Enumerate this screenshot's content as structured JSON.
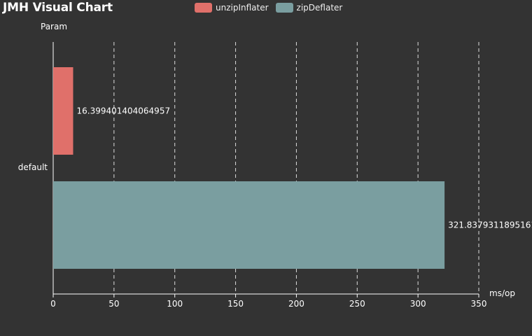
{
  "title": "JMH Visual Chart",
  "chart_data": {
    "type": "bar",
    "orientation": "horizontal",
    "categories": [
      "default"
    ],
    "category_axis_label": "Param",
    "value_axis_label": "ms/op",
    "series": [
      {
        "name": "unzipInflater",
        "values": [
          16.399401404064957
        ],
        "label": "16.399401404064957",
        "color": "#e0706a"
      },
      {
        "name": "zipDeflater",
        "values": [
          321.83793118951615
        ],
        "label": "321.83793118951615",
        "color": "#7a9ea0"
      }
    ],
    "xlim": [
      0,
      350
    ],
    "xticks": [
      0,
      50,
      100,
      150,
      200,
      250,
      300,
      350
    ],
    "grid": "vertical dashed",
    "legend": "top-center"
  }
}
